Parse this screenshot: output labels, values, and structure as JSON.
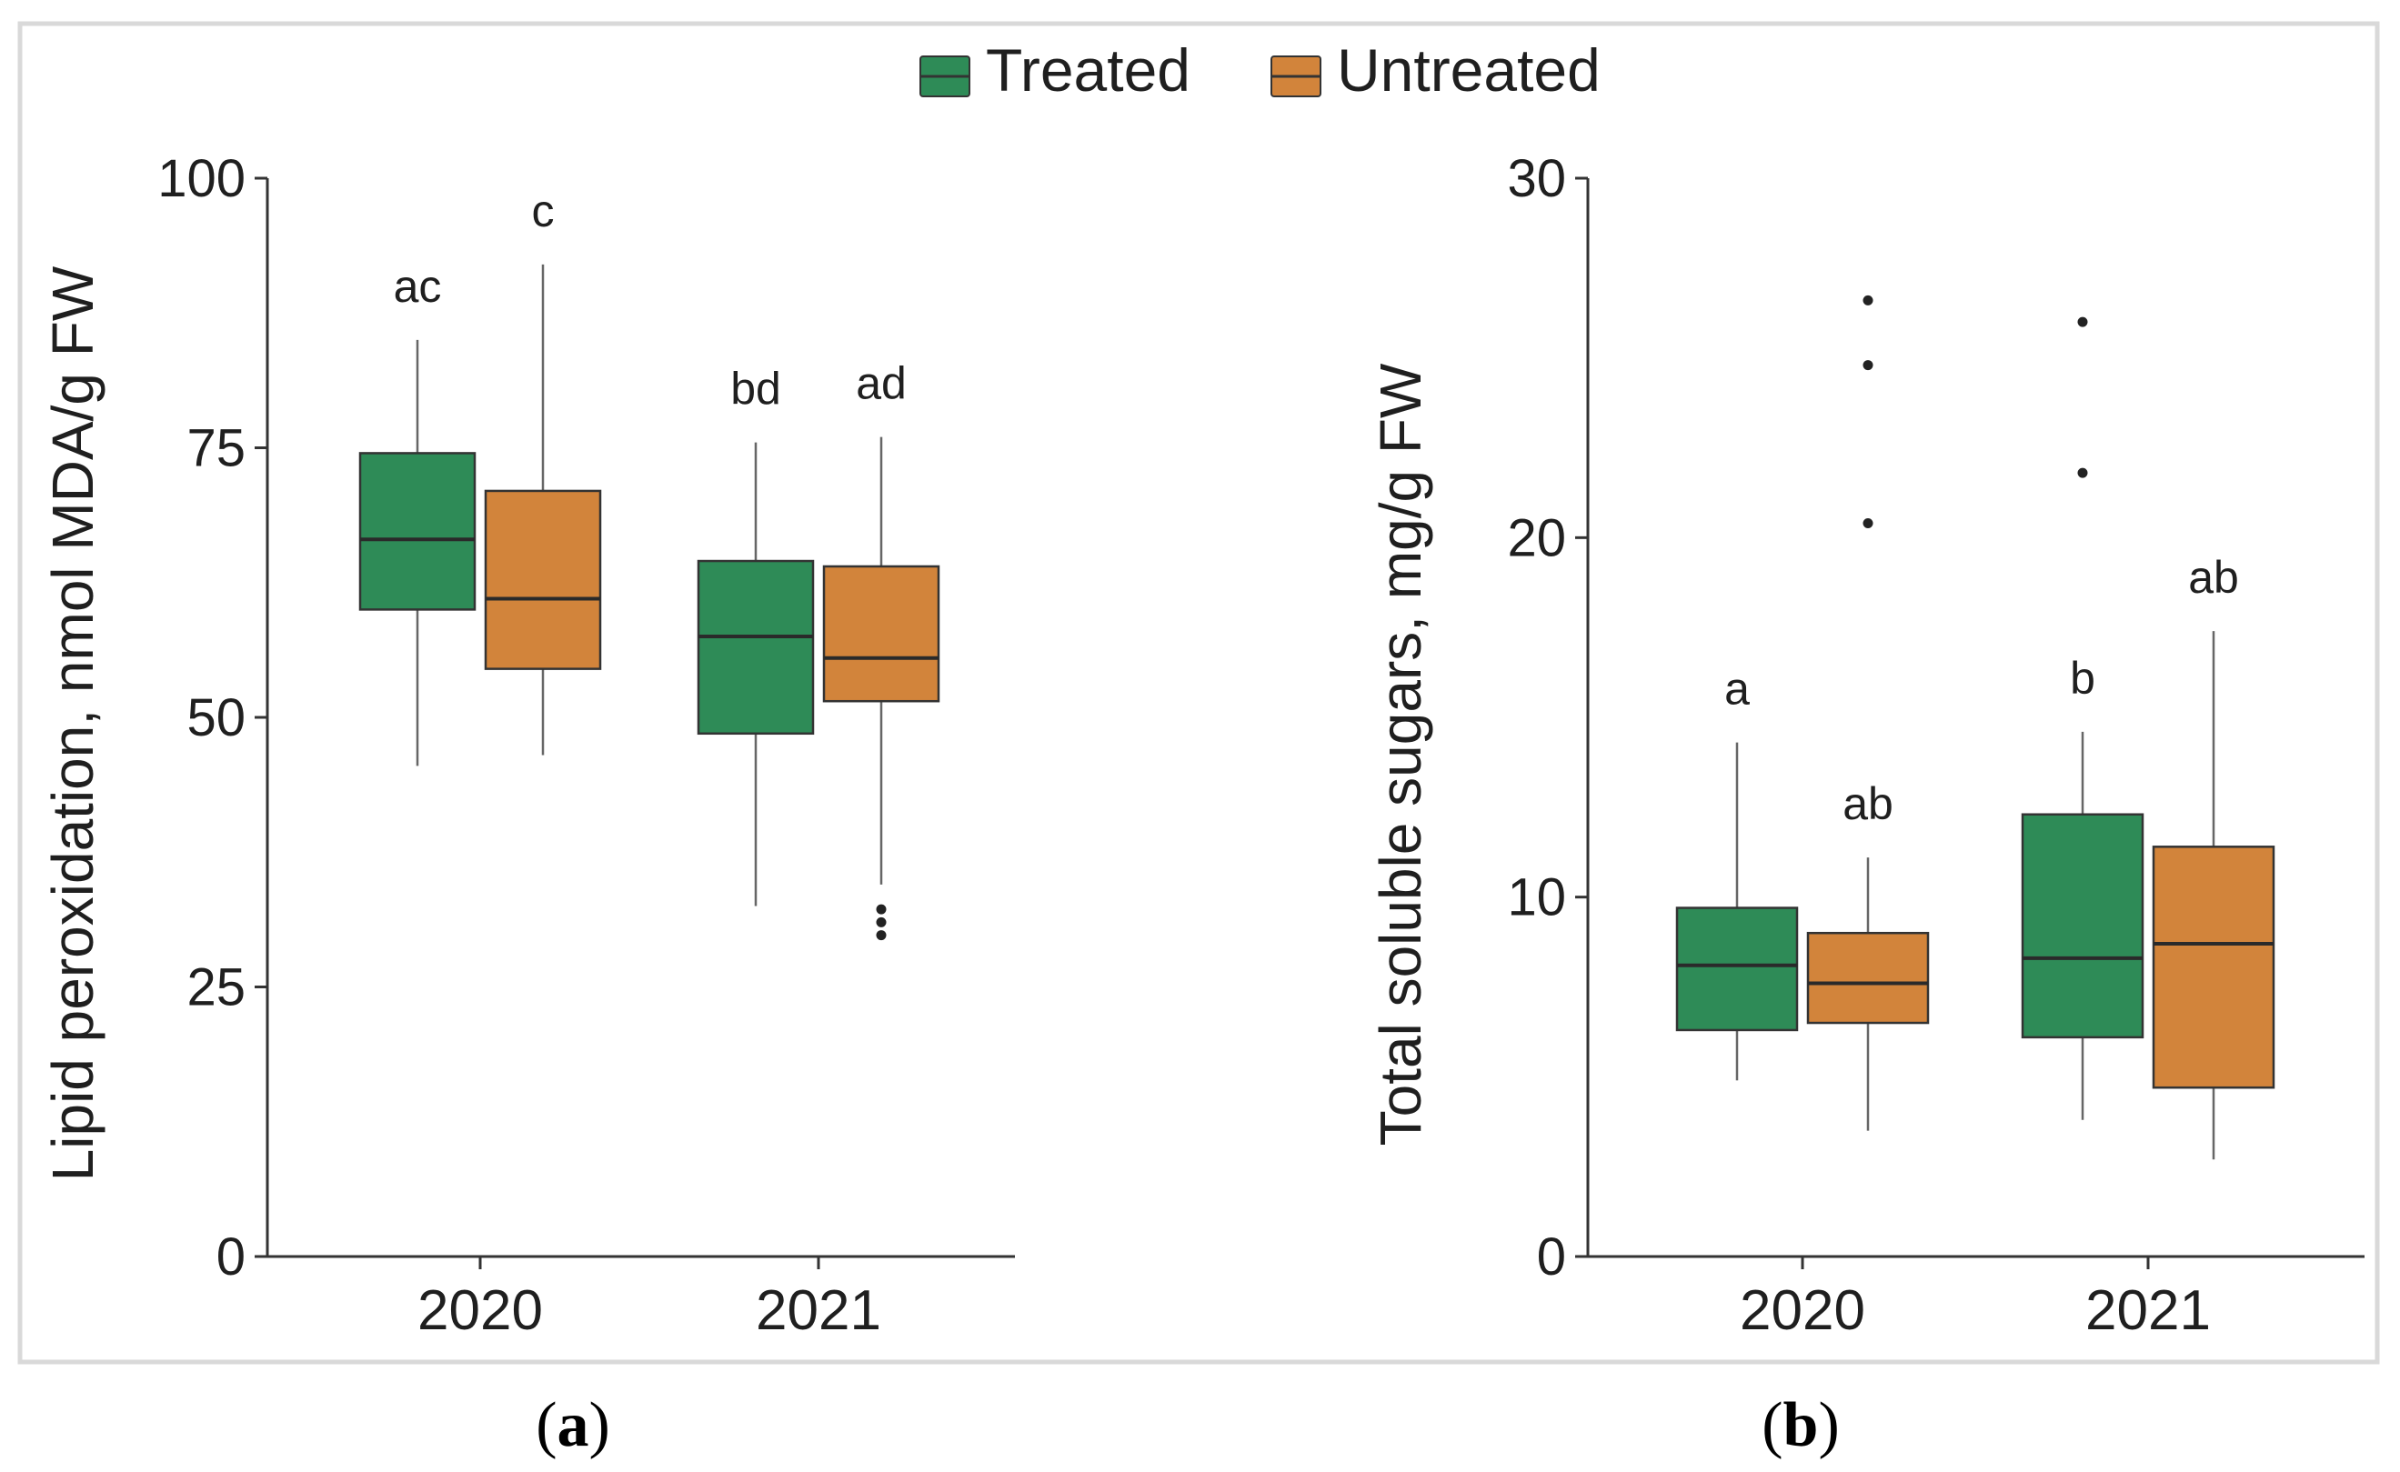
{
  "colors": {
    "treated": "#2e8b57",
    "untreated": "#d2843b",
    "frame": "#d9d9d9",
    "axis": "#333333",
    "whisker": "#666666"
  },
  "legend": {
    "items": [
      {
        "label": "Treated",
        "color": "#2e8b57"
      },
      {
        "label": "Untreated",
        "color": "#d2843b"
      }
    ]
  },
  "panel_labels": {
    "a": {
      "open": "(",
      "letter": "a",
      "close": ")"
    },
    "b": {
      "open": "(",
      "letter": "b",
      "close": ")"
    }
  },
  "chart_data": [
    {
      "id": "a",
      "type": "box",
      "ylabel": "Lipid peroxidation, nmol MDA/g FW",
      "xlabel": "",
      "categories": [
        "2020",
        "2021"
      ],
      "ylim": [
        0,
        100
      ],
      "yticks": [
        0,
        25,
        50,
        75,
        100
      ],
      "grid": false,
      "series": [
        {
          "name": "Treated",
          "boxes": [
            {
              "category": "2020",
              "min": 45.5,
              "q1": 60,
              "median": 66.5,
              "q3": 74.5,
              "max": 85,
              "outliers": [],
              "label": "ac"
            },
            {
              "category": "2021",
              "min": 32.5,
              "q1": 48.5,
              "median": 57.5,
              "q3": 64.5,
              "max": 75.5,
              "outliers": [],
              "label": "bd"
            }
          ]
        },
        {
          "name": "Untreated",
          "boxes": [
            {
              "category": "2020",
              "min": 46.5,
              "q1": 54.5,
              "median": 61,
              "q3": 71,
              "max": 92,
              "outliers": [],
              "label": "c"
            },
            {
              "category": "2021",
              "min": 34.5,
              "q1": 51.5,
              "median": 55.5,
              "q3": 64,
              "max": 76,
              "outliers": [
                29.8,
                31,
                32.2
              ],
              "label": "ad"
            }
          ]
        }
      ]
    },
    {
      "id": "b",
      "type": "box",
      "ylabel": "Total soluble sugars, mg/g FW",
      "xlabel": "",
      "categories": [
        "2020",
        "2021"
      ],
      "ylim": [
        0,
        30
      ],
      "yticks": [
        0,
        10,
        20,
        30
      ],
      "grid": false,
      "series": [
        {
          "name": "Treated",
          "boxes": [
            {
              "category": "2020",
              "min": 4.9,
              "q1": 6.3,
              "median": 8.1,
              "q3": 9.7,
              "max": 14.3,
              "outliers": [],
              "label": "a"
            },
            {
              "category": "2021",
              "min": 3.8,
              "q1": 6.1,
              "median": 8.3,
              "q3": 12.3,
              "max": 14.6,
              "outliers": [
                21.8,
                26
              ],
              "label": "b"
            }
          ]
        },
        {
          "name": "Untreated",
          "boxes": [
            {
              "category": "2020",
              "min": 3.5,
              "q1": 6.5,
              "median": 7.6,
              "q3": 9,
              "max": 11.1,
              "outliers": [
                20.4,
                24.8,
                26.6
              ],
              "label": "ab"
            },
            {
              "category": "2021",
              "min": 2.7,
              "q1": 4.7,
              "median": 8.7,
              "q3": 11.4,
              "max": 17.4,
              "outliers": [],
              "label": "ab"
            }
          ]
        }
      ]
    }
  ]
}
